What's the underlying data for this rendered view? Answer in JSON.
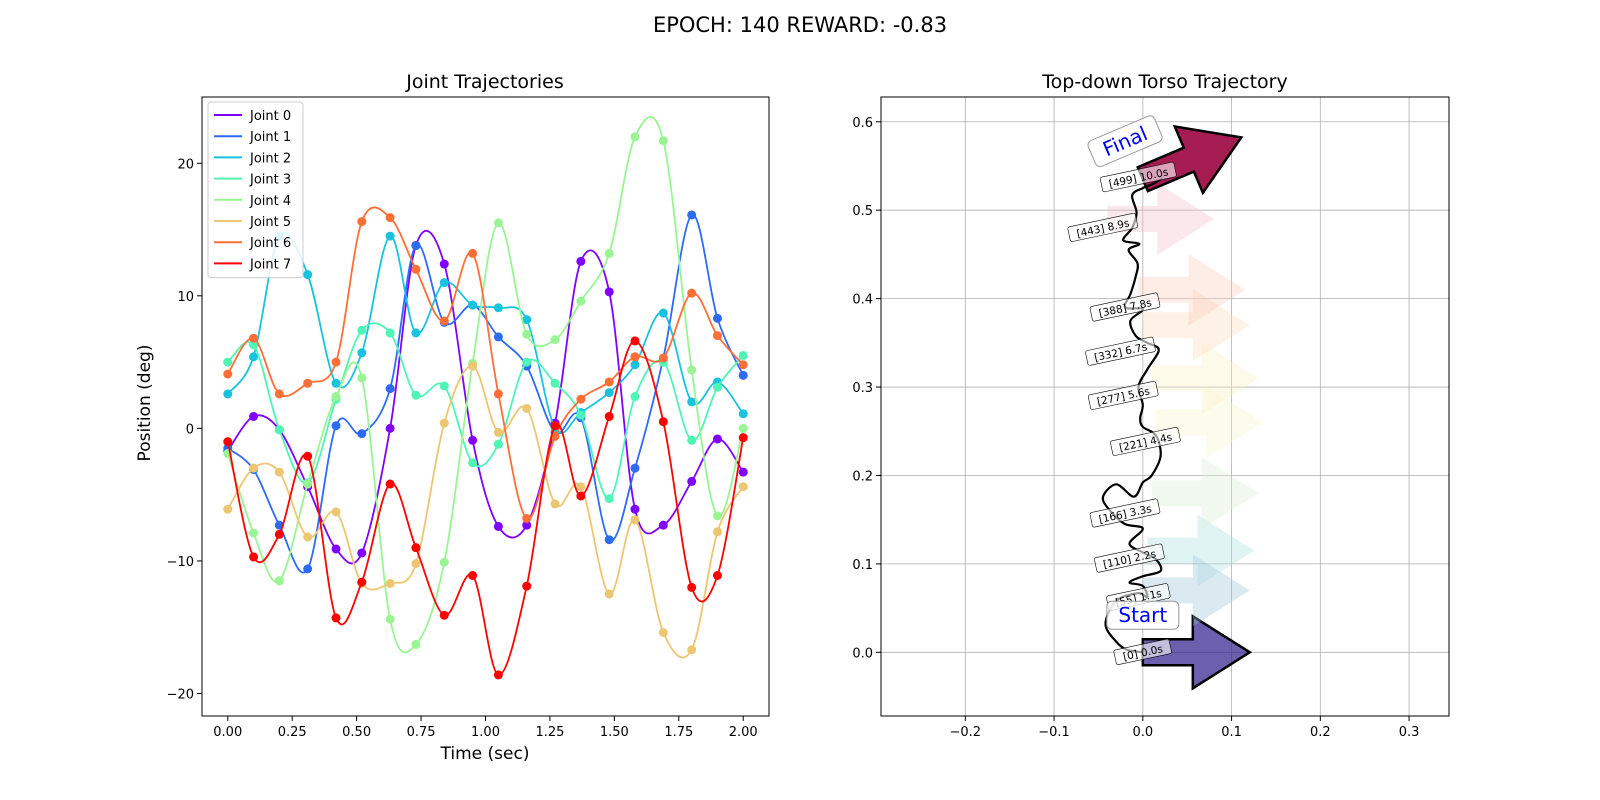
{
  "suptitle": "EPOCH: 140 REWARD:  -0.83",
  "chart_data": [
    {
      "type": "line",
      "title": "Joint Trajectories",
      "xlabel": "Time (sec)",
      "ylabel": "Position (deg)",
      "xlim": [
        -0.1,
        2.1
      ],
      "ylim": [
        -21.7,
        25.0
      ],
      "xticks": [
        "0.00",
        "0.25",
        "0.50",
        "0.75",
        "1.00",
        "1.25",
        "1.50",
        "1.75",
        "2.00"
      ],
      "yticks": [
        "−20",
        "−10",
        "0",
        "10",
        "20"
      ],
      "grid": false,
      "legend_position": "upper-left",
      "marker_x": [
        0.0,
        0.1,
        0.2,
        0.31,
        0.42,
        0.52,
        0.63,
        0.73,
        0.84,
        0.95,
        1.05,
        1.16,
        1.27,
        1.37,
        1.48,
        1.58,
        1.69,
        1.8,
        1.9,
        2.0
      ],
      "series": [
        {
          "name": "Joint 0",
          "color": "#8000ff",
          "markers": [
            -1.7,
            0.9,
            -0.1,
            -4.4,
            -9.1,
            -9.4,
            0.0,
            13.8,
            12.4,
            -0.9,
            -7.4,
            -7.3,
            0.4,
            12.6,
            10.3,
            -6.1,
            -7.3,
            -4.0,
            -0.8,
            -3.3
          ]
        },
        {
          "name": "Joint 1",
          "color": "#2d6bf5",
          "markers": [
            -1.5,
            -3.1,
            -7.3,
            -10.6,
            0.2,
            -0.4,
            3.0,
            13.8,
            8.0,
            9.3,
            6.9,
            4.7,
            -0.3,
            0.8,
            -8.4,
            -3.0,
            5.3,
            16.1,
            8.3,
            4.0
          ]
        },
        {
          "name": "Joint 2",
          "color": "#18c3e0",
          "markers": [
            2.6,
            5.4,
            14.5,
            11.6,
            3.4,
            5.7,
            14.5,
            7.2,
            11.0,
            9.3,
            9.1,
            8.2,
            0.0,
            1.2,
            2.7,
            4.8,
            8.7,
            2.0,
            3.5,
            1.1
          ]
        },
        {
          "name": "Joint 3",
          "color": "#4ef5b5",
          "markers": [
            5.0,
            6.3,
            -0.1,
            -4.1,
            2.2,
            7.4,
            7.2,
            2.5,
            3.2,
            -2.6,
            -1.2,
            5.0,
            3.4,
            1.0,
            -5.3,
            2.4,
            5.0,
            -0.9,
            3.1,
            5.5
          ]
        },
        {
          "name": "Joint 4",
          "color": "#99f594",
          "markers": [
            -1.9,
            -7.9,
            -11.5,
            -4.2,
            2.4,
            3.8,
            -14.4,
            -16.3,
            -10.1,
            4.9,
            15.5,
            7.1,
            6.7,
            9.6,
            13.2,
            22.0,
            21.7,
            4.4,
            -6.6,
            0.0
          ]
        },
        {
          "name": "Joint 5",
          "color": "#edc672",
          "markers": [
            -6.1,
            -3.0,
            -3.3,
            -8.2,
            -6.3,
            -11.7,
            -11.7,
            -10.2,
            0.4,
            4.7,
            -0.3,
            1.5,
            -5.7,
            -4.4,
            -12.5,
            -6.9,
            -15.4,
            -16.7,
            -7.8,
            -4.4
          ]
        },
        {
          "name": "Joint 6",
          "color": "#ff6e36",
          "markers": [
            4.1,
            6.8,
            2.6,
            3.4,
            5.0,
            15.6,
            15.9,
            12.0,
            8.1,
            13.2,
            2.6,
            -6.8,
            -0.6,
            2.2,
            3.5,
            5.4,
            5.3,
            10.2,
            7.0,
            4.8
          ]
        },
        {
          "name": "Joint 7",
          "color": "#ff0000",
          "markers": [
            -1.0,
            -9.7,
            -8.0,
            -2.1,
            -14.3,
            -11.6,
            -4.2,
            -9.0,
            -14.1,
            -11.1,
            -18.6,
            -11.9,
            0.2,
            -5.1,
            0.9,
            6.6,
            0.5,
            -12.0,
            -11.1,
            -0.7
          ]
        }
      ]
    },
    {
      "type": "line",
      "title": "Top-down Torso Trajectory",
      "xlim": [
        -0.295,
        0.345
      ],
      "ylim": [
        -0.072,
        0.628
      ],
      "xticks": [
        "−0.2",
        "−0.1",
        "0.0",
        "0.1",
        "0.2",
        "0.3"
      ],
      "yticks": [
        "0.0",
        "0.1",
        "0.2",
        "0.3",
        "0.4",
        "0.5",
        "0.6"
      ],
      "grid": true,
      "path_color": "#000000",
      "path": [
        [
          0.0,
          0.0
        ],
        [
          -0.018,
          0.003
        ],
        [
          -0.03,
          0.012
        ],
        [
          -0.042,
          0.032
        ],
        [
          -0.03,
          0.058
        ],
        [
          -0.005,
          0.067
        ],
        [
          0.005,
          0.062
        ],
        [
          0.0,
          0.075
        ],
        [
          -0.015,
          0.079
        ],
        [
          0.0,
          0.086
        ],
        [
          0.02,
          0.092
        ],
        [
          0.015,
          0.105
        ],
        [
          0.0,
          0.113
        ],
        [
          -0.015,
          0.123
        ],
        [
          0.0,
          0.14
        ],
        [
          -0.02,
          0.145
        ],
        [
          -0.035,
          0.158
        ],
        [
          -0.045,
          0.175
        ],
        [
          -0.03,
          0.19
        ],
        [
          -0.01,
          0.176
        ],
        [
          0.0,
          0.192
        ],
        [
          0.01,
          0.2
        ],
        [
          0.02,
          0.222
        ],
        [
          0.015,
          0.245
        ],
        [
          0.0,
          0.255
        ],
        [
          -0.003,
          0.265
        ],
        [
          0.0,
          0.28
        ],
        [
          -0.005,
          0.3
        ],
        [
          0.005,
          0.32
        ],
        [
          0.018,
          0.342
        ],
        [
          0.005,
          0.35
        ],
        [
          -0.008,
          0.358
        ],
        [
          -0.014,
          0.375
        ],
        [
          0.0,
          0.388
        ],
        [
          -0.02,
          0.39
        ],
        [
          -0.014,
          0.405
        ],
        [
          -0.008,
          0.425
        ],
        [
          -0.006,
          0.44
        ],
        [
          -0.016,
          0.455
        ],
        [
          -0.004,
          0.462
        ],
        [
          -0.022,
          0.466
        ],
        [
          -0.012,
          0.48
        ],
        [
          -0.007,
          0.497
        ],
        [
          -0.012,
          0.517
        ],
        [
          0.0,
          0.525
        ],
        [
          0.012,
          0.53
        ],
        [
          0.022,
          0.536
        ]
      ],
      "arrows": [
        {
          "x": 0.0,
          "y": 0.0,
          "color": "#3a2a93",
          "alpha": 0.75,
          "outline": true
        },
        {
          "x": 0.0,
          "y": 0.07,
          "color": "#98c1d8",
          "alpha": 0.35,
          "outline": false
        },
        {
          "x": 0.005,
          "y": 0.115,
          "color": "#a9dfe0",
          "alpha": 0.35,
          "outline": false
        },
        {
          "x": 0.01,
          "y": 0.18,
          "color": "#d7ecd0",
          "alpha": 0.35,
          "outline": false
        },
        {
          "x": 0.015,
          "y": 0.26,
          "color": "#f4f6c8",
          "alpha": 0.35,
          "outline": false
        },
        {
          "x": 0.01,
          "y": 0.31,
          "color": "#fdf0c4",
          "alpha": 0.35,
          "outline": false
        },
        {
          "x": 0.0,
          "y": 0.37,
          "color": "#fdd9b8",
          "alpha": 0.35,
          "outline": false
        },
        {
          "x": -0.005,
          "y": 0.41,
          "color": "#fcc9b6",
          "alpha": 0.35,
          "outline": false
        },
        {
          "x": -0.04,
          "y": 0.49,
          "color": "#f4bcc8",
          "alpha": 0.35,
          "outline": false
        },
        {
          "x": 0.0,
          "y": 0.535,
          "color": "#a0104a",
          "alpha": 0.95,
          "outline": true,
          "angle": 23
        }
      ],
      "time_labels": [
        {
          "text": "[0] 0.0s",
          "x": 0.0,
          "y": 0.0
        },
        {
          "text": "[55] 1.1s",
          "x": -0.005,
          "y": 0.062
        },
        {
          "text": "[110] 2.2s",
          "x": -0.015,
          "y": 0.106
        },
        {
          "text": "[166] 3.3s",
          "x": -0.02,
          "y": 0.157
        },
        {
          "text": "[221] 4.4s",
          "x": 0.003,
          "y": 0.238
        },
        {
          "text": "[277] 5.6s",
          "x": -0.022,
          "y": 0.29
        },
        {
          "text": "[332] 6.7s",
          "x": -0.025,
          "y": 0.34
        },
        {
          "text": "[388] 7.8s",
          "x": -0.02,
          "y": 0.39
        },
        {
          "text": "[443] 8.9s",
          "x": -0.045,
          "y": 0.48
        },
        {
          "text": "[499] 10.0s",
          "x": -0.005,
          "y": 0.537
        }
      ],
      "start_label": "Start",
      "final_label": "Final",
      "label_color": "#0000ff"
    }
  ]
}
